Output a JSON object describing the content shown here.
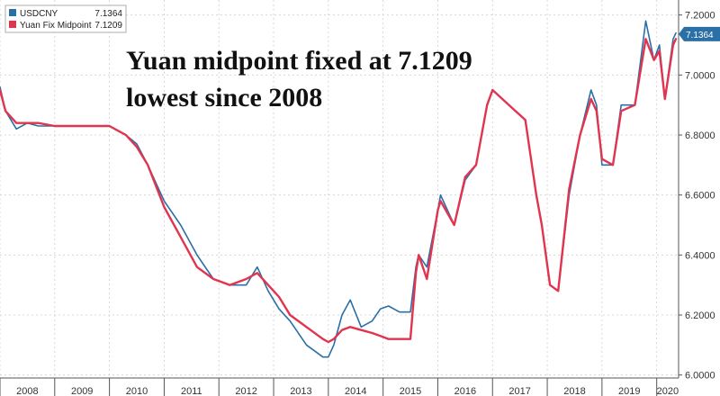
{
  "chart_data": {
    "type": "line",
    "title": "",
    "xlabel": "",
    "ylabel": "",
    "annotation": [
      "Yuan midpoint fixed at 7.1209",
      "lowest since 2008"
    ],
    "legend": {
      "placement": "top-left",
      "entries": [
        {
          "name": "USDCNY",
          "value": "7.1364",
          "color": "#2a6fa6"
        },
        {
          "name": "Yuan Fix Midpoint",
          "value": "7.1209",
          "color": "#e0344f"
        }
      ]
    },
    "last_value_label": "7.1364",
    "x_ticks": [
      "2008",
      "2009",
      "2010",
      "2011",
      "2012",
      "2013",
      "2014",
      "2015",
      "2016",
      "2017",
      "2018",
      "2019",
      "2020"
    ],
    "y_ticks": [
      "6.0000",
      "6.2000",
      "6.4000",
      "6.6000",
      "6.8000",
      "7.0000",
      "7.2000"
    ],
    "xlim": [
      2008.0,
      2020.4
    ],
    "ylim": [
      5.99,
      7.25
    ],
    "grid": true,
    "series": [
      {
        "name": "USDCNY",
        "color": "#2a6fa6",
        "x": [
          2008.0,
          2008.1,
          2008.3,
          2008.5,
          2008.7,
          2009.0,
          2009.5,
          2010.0,
          2010.3,
          2010.5,
          2010.7,
          2011.0,
          2011.3,
          2011.6,
          2011.9,
          2012.2,
          2012.5,
          2012.7,
          2012.9,
          2013.1,
          2013.3,
          2013.6,
          2013.9,
          2014.0,
          2014.1,
          2014.25,
          2014.4,
          2014.6,
          2014.8,
          2014.95,
          2015.1,
          2015.3,
          2015.5,
          2015.6,
          2015.65,
          2015.8,
          2016.0,
          2016.05,
          2016.3,
          2016.5,
          2016.7,
          2016.9,
          2017.0,
          2017.3,
          2017.6,
          2017.8,
          2017.9,
          2018.05,
          2018.2,
          2018.4,
          2018.6,
          2018.8,
          2018.9,
          2019.0,
          2019.2,
          2019.35,
          2019.6,
          2019.8,
          2019.95,
          2020.05,
          2020.15,
          2020.3,
          2020.35
        ],
        "y": [
          6.96,
          6.88,
          6.82,
          6.84,
          6.83,
          6.83,
          6.83,
          6.83,
          6.8,
          6.77,
          6.7,
          6.58,
          6.5,
          6.4,
          6.32,
          6.3,
          6.3,
          6.36,
          6.28,
          6.22,
          6.18,
          6.1,
          6.06,
          6.06,
          6.1,
          6.2,
          6.25,
          6.16,
          6.18,
          6.22,
          6.23,
          6.21,
          6.21,
          6.36,
          6.4,
          6.36,
          6.55,
          6.6,
          6.5,
          6.65,
          6.7,
          6.9,
          6.95,
          6.9,
          6.85,
          6.6,
          6.5,
          6.3,
          6.28,
          6.6,
          6.8,
          6.95,
          6.9,
          6.7,
          6.7,
          6.9,
          6.9,
          7.18,
          7.05,
          7.1,
          6.92,
          7.12,
          7.14
        ]
      },
      {
        "name": "Yuan Fix Midpoint",
        "color": "#e0344f",
        "x": [
          2008.0,
          2008.1,
          2008.3,
          2008.5,
          2008.7,
          2009.0,
          2009.5,
          2010.0,
          2010.3,
          2010.5,
          2010.7,
          2011.0,
          2011.3,
          2011.6,
          2011.9,
          2012.2,
          2012.5,
          2012.7,
          2012.9,
          2013.1,
          2013.3,
          2013.6,
          2013.9,
          2014.0,
          2014.1,
          2014.25,
          2014.4,
          2014.6,
          2014.8,
          2014.95,
          2015.1,
          2015.3,
          2015.5,
          2015.6,
          2015.65,
          2015.8,
          2016.0,
          2016.05,
          2016.3,
          2016.5,
          2016.7,
          2016.9,
          2017.0,
          2017.3,
          2017.6,
          2017.8,
          2017.9,
          2018.05,
          2018.2,
          2018.4,
          2018.6,
          2018.8,
          2018.9,
          2019.0,
          2019.2,
          2019.35,
          2019.6,
          2019.8,
          2019.95,
          2020.05,
          2020.15,
          2020.3,
          2020.35
        ],
        "y": [
          6.95,
          6.88,
          6.84,
          6.84,
          6.84,
          6.83,
          6.83,
          6.83,
          6.8,
          6.76,
          6.7,
          6.56,
          6.46,
          6.36,
          6.32,
          6.3,
          6.32,
          6.34,
          6.3,
          6.26,
          6.2,
          6.16,
          6.12,
          6.11,
          6.12,
          6.15,
          6.16,
          6.15,
          6.14,
          6.13,
          6.12,
          6.12,
          6.12,
          6.34,
          6.4,
          6.32,
          6.55,
          6.58,
          6.5,
          6.66,
          6.7,
          6.9,
          6.95,
          6.9,
          6.85,
          6.6,
          6.5,
          6.3,
          6.28,
          6.62,
          6.8,
          6.92,
          6.88,
          6.72,
          6.7,
          6.88,
          6.9,
          7.12,
          7.05,
          7.08,
          6.92,
          7.1,
          7.12
        ]
      }
    ]
  }
}
